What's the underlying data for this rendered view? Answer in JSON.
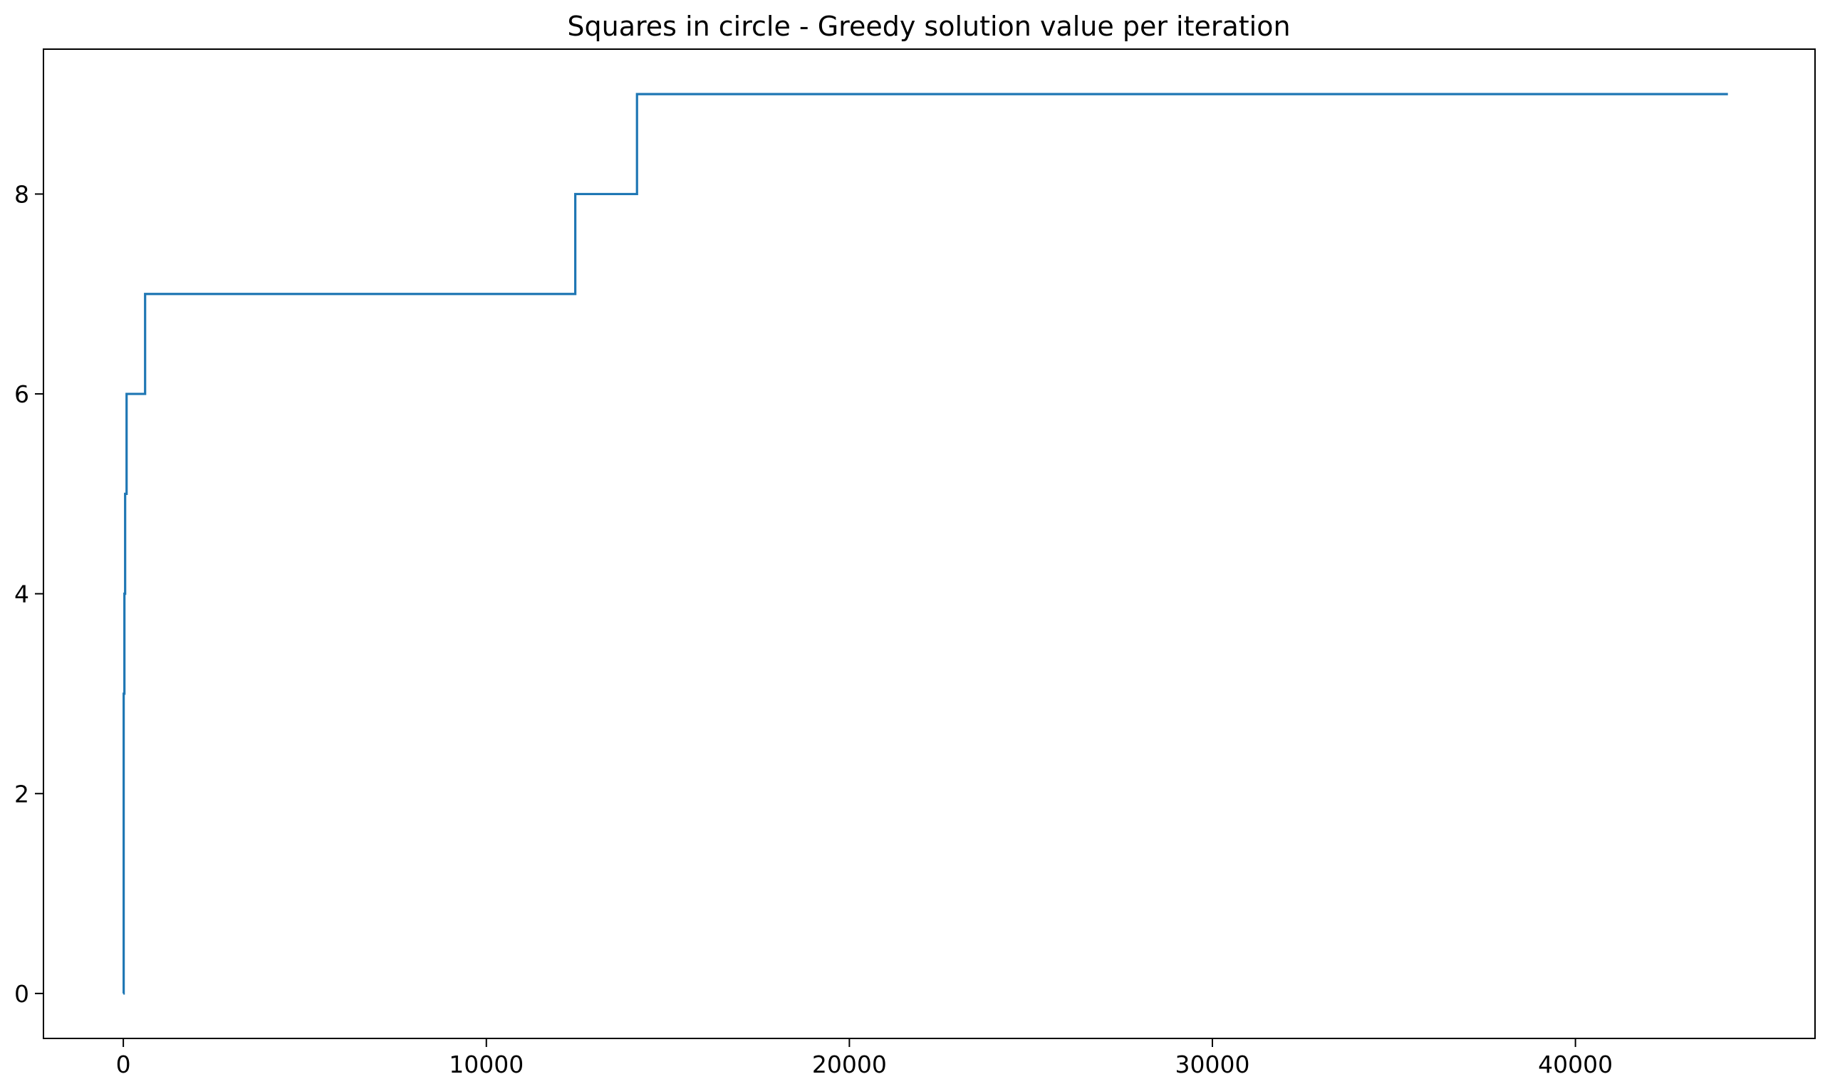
{
  "chart_data": {
    "type": "line",
    "title": "Squares in circle - Greedy solution value per iteration",
    "xlabel": "",
    "ylabel": "",
    "xlim": [
      -2200,
      46600
    ],
    "ylim": [
      -0.45,
      9.45
    ],
    "xticks": [
      0,
      10000,
      20000,
      30000,
      40000
    ],
    "xtick_labels": [
      "0",
      "10000",
      "20000",
      "30000",
      "40000"
    ],
    "yticks": [
      0,
      2,
      4,
      6,
      8
    ],
    "ytick_labels": [
      "0",
      "2",
      "4",
      "6",
      "8"
    ],
    "grid": false,
    "legend": "none",
    "step": "post",
    "series": [
      {
        "color": "#1f77b4",
        "x": [
          0,
          10,
          30,
          50,
          90,
          600,
          12450,
          14150,
          44200
        ],
        "y": [
          0,
          3,
          4,
          5,
          6,
          7,
          8,
          9,
          9
        ]
      }
    ]
  }
}
